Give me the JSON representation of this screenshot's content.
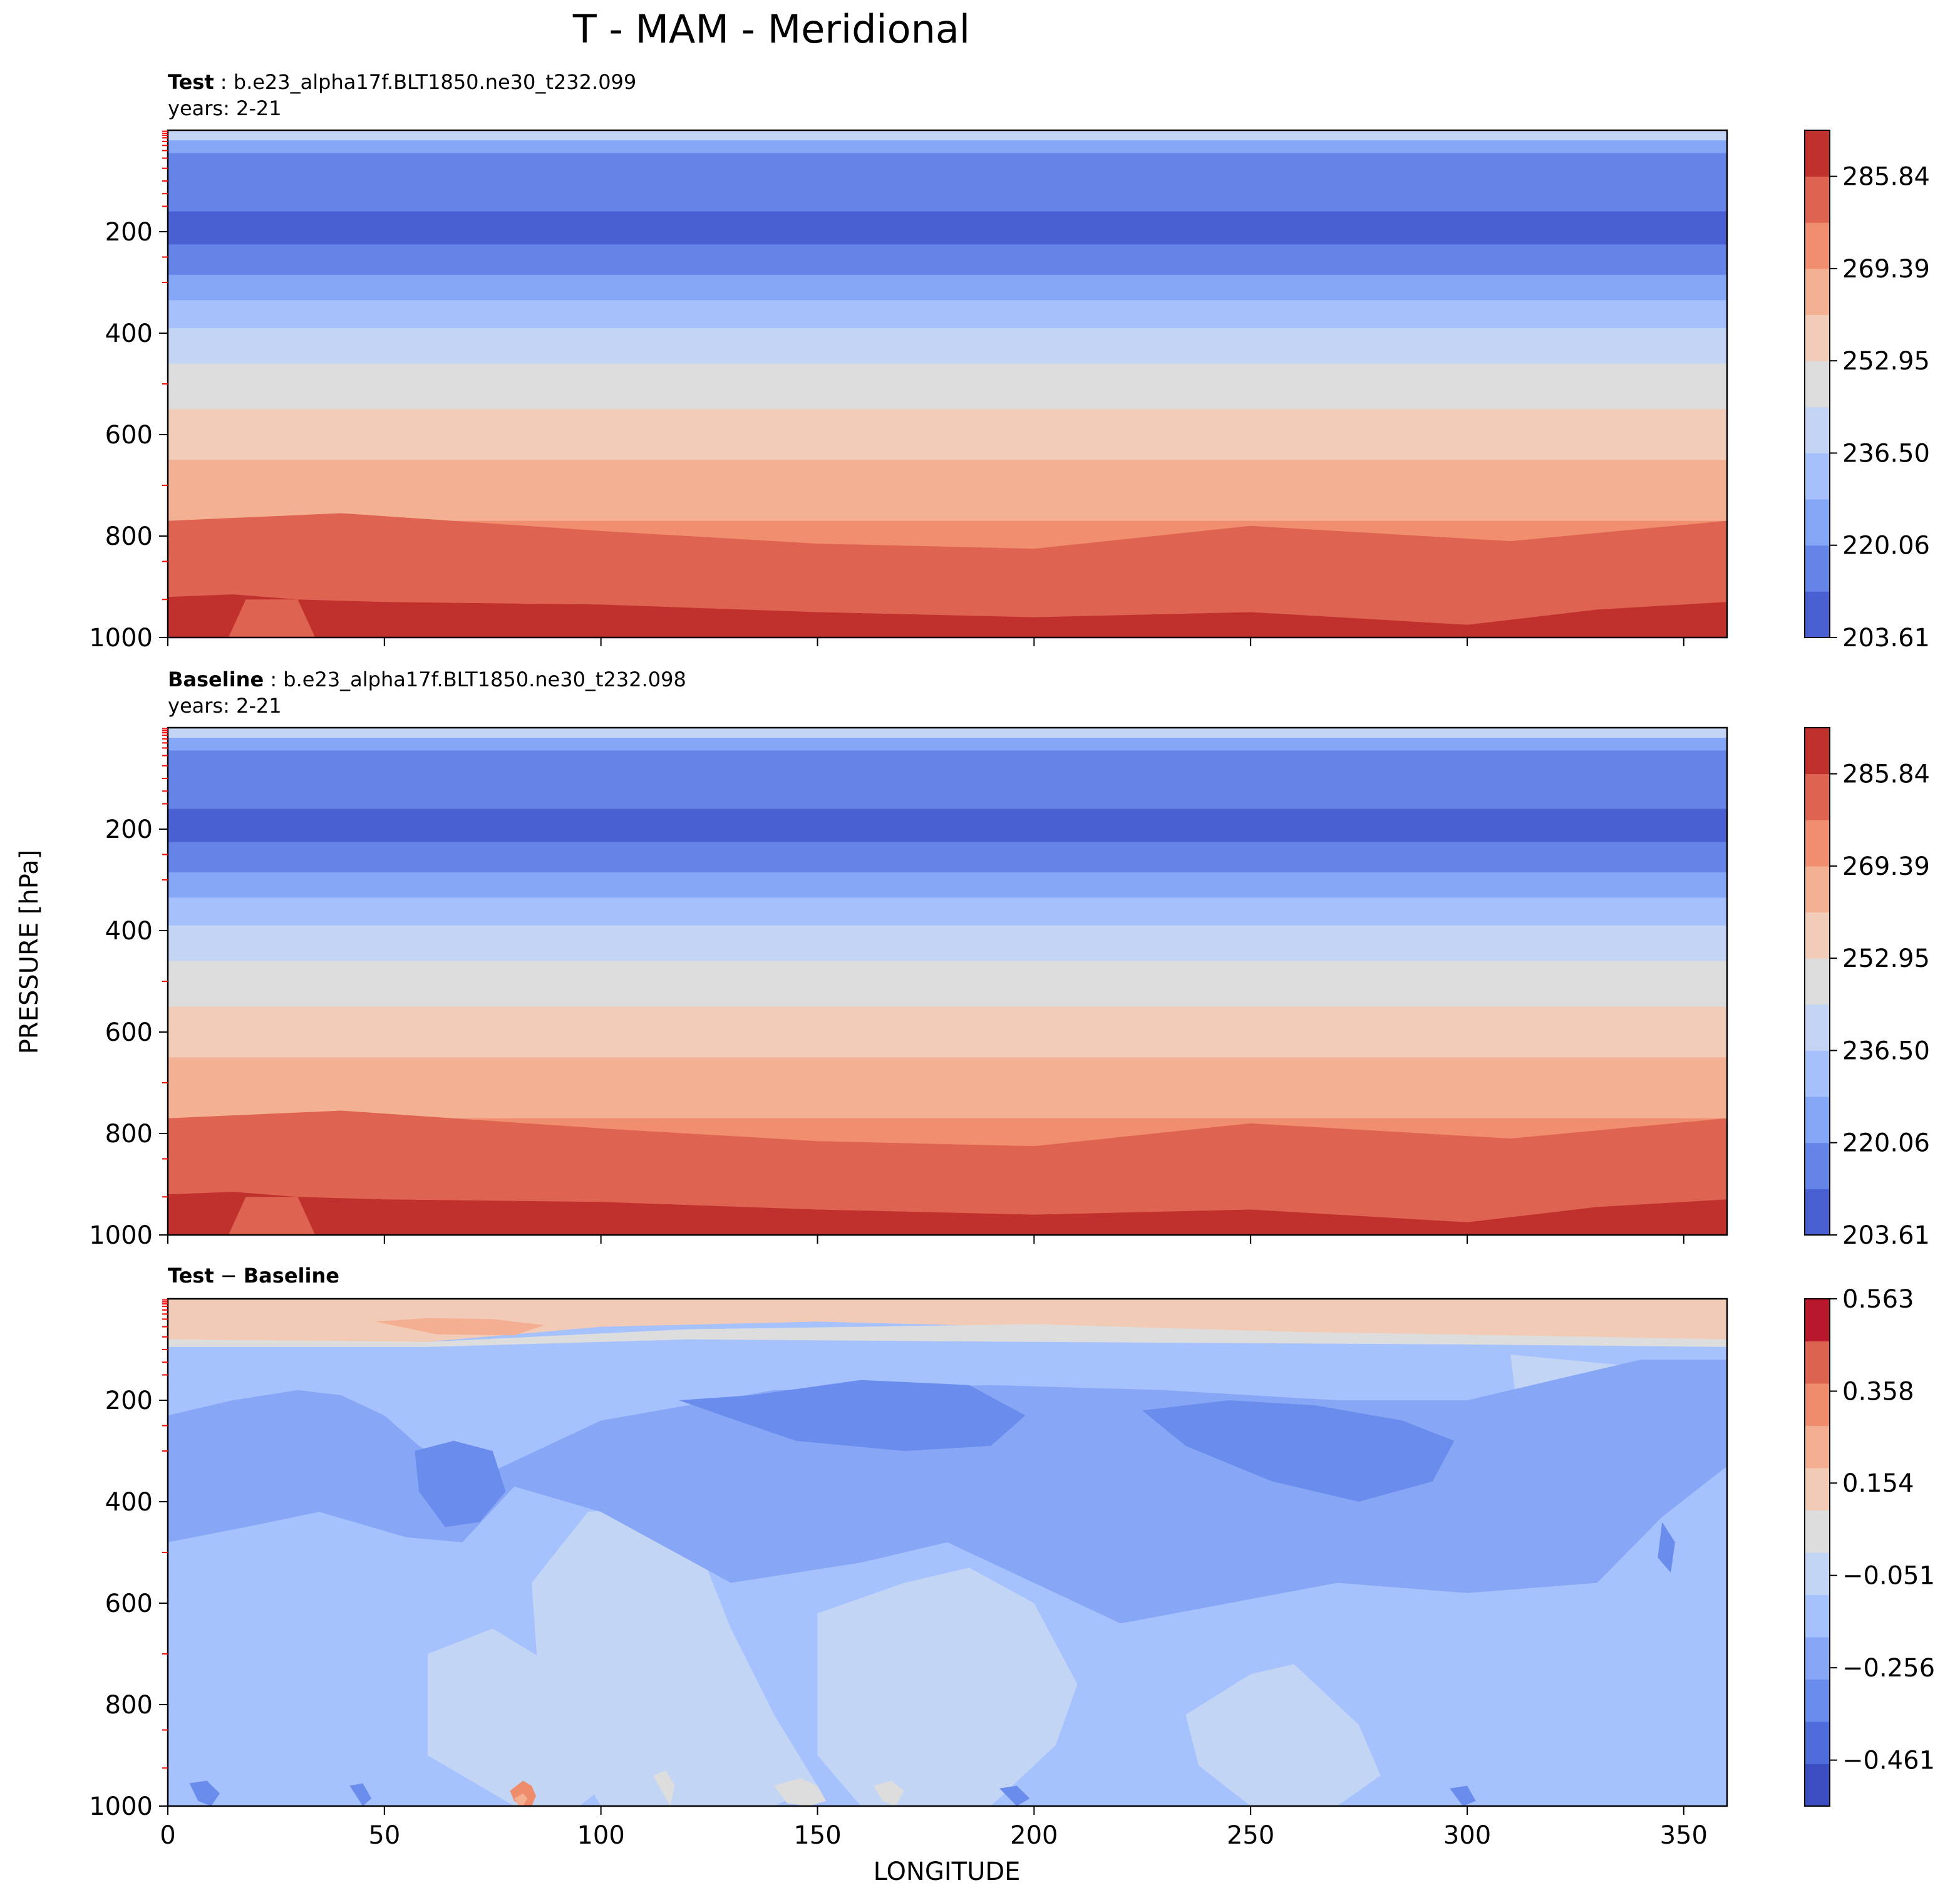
{
  "title": "T - MAM - Meridional",
  "xlabel": "LONGITUDE",
  "ylabel": "PRESSURE [hPa]",
  "colors": {
    "temp_levels": [
      "#4a5fd1",
      "#6584e8",
      "#84a6f7",
      "#a5c0fd",
      "#c3d4f4",
      "#dcdcdc",
      "#f1ccb8",
      "#f4b092",
      "#f08e6f",
      "#de6350",
      "#c0302c"
    ],
    "diff_levels": [
      "#3c4dc2",
      "#4e6ddb",
      "#6a8cec",
      "#87a7f6",
      "#a5c1fe",
      "#c3d5f4",
      "#dddddd",
      "#f2cbb6",
      "#f4af93",
      "#ef8c6c",
      "#dd6351",
      "#b8172c"
    ],
    "frame": "#000000",
    "minor_tick": "#ff0000"
  },
  "chart_data": [
    {
      "type": "contourf",
      "panel": "test",
      "label_bold": "Test",
      "label_text": " : b.e23_alpha17f.BLT1850.ne30_t232.099",
      "years": "years: 2-21",
      "x": {
        "label": "LONGITUDE",
        "range": [
          0,
          360
        ],
        "ticks": [
          0,
          50,
          100,
          150,
          200,
          250,
          300,
          350
        ],
        "tick_labels_shown": false
      },
      "y": {
        "label": "PRESSURE [hPa]",
        "range": [
          0,
          1000
        ],
        "inverted": true,
        "ticks": [
          200,
          400,
          600,
          800,
          1000
        ],
        "tick_labels": [
          "200",
          "400",
          "600",
          "800",
          "1000"
        ]
      },
      "colorbar": {
        "range": [
          203.61,
          294.06
        ],
        "levels": 11,
        "tick_values": [
          203.61,
          220.06,
          236.5,
          252.95,
          269.39,
          285.84
        ],
        "tick_labels": [
          "203.61",
          "220.06",
          "236.50",
          "252.95",
          "269.39",
          "285.84"
        ]
      },
      "band_top_levels_hpa": [
        0,
        20,
        45,
        160,
        225,
        285,
        335,
        390,
        460,
        550,
        650,
        770,
        925
      ],
      "bottom_boundary": {
        "lon": [
          0,
          15,
          30,
          50,
          100,
          150,
          200,
          250,
          280,
          300,
          330,
          360
        ],
        "p": [
          920,
          915,
          925,
          930,
          935,
          950,
          960,
          950,
          965,
          975,
          945,
          930
        ]
      },
      "warm_boundary": {
        "lon": [
          0,
          40,
          100,
          150,
          200,
          250,
          290,
          310,
          360
        ],
        "p": [
          770,
          755,
          790,
          815,
          825,
          780,
          800,
          810,
          770
        ]
      }
    },
    {
      "type": "contourf",
      "panel": "baseline",
      "label_bold": "Baseline",
      "label_text": " : b.e23_alpha17f.BLT1850.ne30_t232.098",
      "years": "years: 2-21",
      "x": {
        "label": "LONGITUDE",
        "range": [
          0,
          360
        ],
        "ticks": [
          0,
          50,
          100,
          150,
          200,
          250,
          300,
          350
        ],
        "tick_labels_shown": false
      },
      "y": {
        "label": "PRESSURE [hPa]",
        "range": [
          0,
          1000
        ],
        "inverted": true,
        "ticks": [
          200,
          400,
          600,
          800,
          1000
        ],
        "tick_labels": [
          "200",
          "400",
          "600",
          "800",
          "1000"
        ]
      },
      "colorbar": {
        "range": [
          203.61,
          294.06
        ],
        "levels": 11,
        "tick_values": [
          203.61,
          220.06,
          236.5,
          252.95,
          269.39,
          285.84
        ],
        "tick_labels": [
          "203.61",
          "220.06",
          "236.50",
          "252.95",
          "269.39",
          "285.84"
        ]
      },
      "band_top_levels_hpa": [
        0,
        20,
        45,
        160,
        225,
        285,
        335,
        390,
        460,
        550,
        650,
        770,
        925
      ],
      "bottom_boundary": {
        "lon": [
          0,
          15,
          30,
          50,
          100,
          150,
          200,
          250,
          280,
          300,
          330,
          360
        ],
        "p": [
          920,
          915,
          925,
          930,
          935,
          950,
          960,
          950,
          965,
          975,
          945,
          930
        ]
      },
      "warm_boundary": {
        "lon": [
          0,
          40,
          100,
          150,
          200,
          250,
          290,
          310,
          360
        ],
        "p": [
          770,
          755,
          790,
          815,
          825,
          780,
          800,
          810,
          770
        ]
      }
    },
    {
      "type": "contourf",
      "panel": "diff",
      "label_bold_a": "Test",
      "label_sep": " − ",
      "label_bold_b": "Baseline",
      "x": {
        "label": "LONGITUDE",
        "range": [
          0,
          360
        ],
        "ticks": [
          0,
          50,
          100,
          150,
          200,
          250,
          300,
          350
        ],
        "tick_labels": [
          "0",
          "50",
          "100",
          "150",
          "200",
          "250",
          "300",
          "350"
        ]
      },
      "y": {
        "label": "PRESSURE [hPa]",
        "range": [
          0,
          1000
        ],
        "inverted": true,
        "ticks": [
          200,
          400,
          600,
          800,
          1000
        ],
        "tick_labels": [
          "200",
          "400",
          "600",
          "800",
          "1000"
        ]
      },
      "colorbar": {
        "range": [
          -0.563,
          0.563
        ],
        "levels": 12,
        "tick_values": [
          -0.461,
          -0.256,
          -0.051,
          0.154,
          0.358,
          0.563
        ],
        "tick_labels": [
          "−0.461",
          "−0.256",
          "−0.051",
          "0.154",
          "0.358",
          "0.563"
        ]
      },
      "background_level": 4,
      "features": [
        {
          "level": 7,
          "lon": [
            0,
            30,
            60,
            90,
            120,
            200,
            260,
            330,
            360,
            360,
            300,
            220,
            150,
            100,
            60,
            20,
            0
          ],
          "p": [
            0,
            0,
            0,
            0,
            0,
            0,
            0,
            0,
            0,
            80,
            75,
            60,
            45,
            55,
            85,
            85,
            80
          ]
        },
        {
          "level": 8,
          "lon": [
            48,
            60,
            75,
            87,
            80,
            62
          ],
          "p": [
            45,
            38,
            40,
            52,
            72,
            70
          ]
        },
        {
          "level": 6,
          "lon": [
            0,
            60,
            120,
            200,
            260,
            330,
            360,
            360,
            300,
            200,
            120,
            60,
            0
          ],
          "p": [
            80,
            85,
            60,
            50,
            65,
            75,
            80,
            95,
            90,
            85,
            80,
            95,
            95
          ]
        },
        {
          "level": 5,
          "lon": [
            310,
            335,
            340,
            325,
            312
          ],
          "p": [
            110,
            130,
            250,
            300,
            250
          ]
        },
        {
          "level": 5,
          "lon": [
            60,
            75,
            100,
            110,
            95,
            80,
            60
          ],
          "p": [
            700,
            650,
            780,
            900,
            1000,
            1000,
            900
          ]
        },
        {
          "level": 5,
          "lon": [
            84,
            97,
            110,
            123,
            130,
            140,
            150,
            140,
            100,
            86
          ],
          "p": [
            560,
            420,
            410,
            500,
            650,
            820,
            960,
            1000,
            1000,
            800
          ]
        },
        {
          "level": 5,
          "lon": [
            150,
            170,
            185,
            200,
            210,
            205,
            190,
            160,
            150
          ],
          "p": [
            620,
            560,
            530,
            600,
            760,
            880,
            1000,
            1000,
            900
          ]
        },
        {
          "level": 5,
          "lon": [
            235,
            250,
            260,
            275,
            280,
            270,
            250,
            238
          ],
          "p": [
            820,
            740,
            720,
            840,
            940,
            1000,
            1000,
            920
          ]
        },
        {
          "level": 3,
          "lon": [
            0,
            15,
            30,
            40,
            50,
            58,
            66,
            70,
            100,
            140,
            190,
            230,
            270,
            300,
            325,
            340,
            360,
            360,
            345,
            330,
            300,
            270,
            245,
            220,
            200,
            180,
            160,
            130,
            100,
            80,
            68,
            55,
            35,
            18,
            0
          ],
          "p": [
            230,
            200,
            180,
            190,
            230,
            290,
            330,
            360,
            240,
            180,
            170,
            180,
            200,
            200,
            150,
            120,
            120,
            330,
            430,
            560,
            580,
            560,
            600,
            640,
            560,
            480,
            520,
            560,
            420,
            370,
            480,
            470,
            420,
            450,
            480
          ]
        },
        {
          "level": 2,
          "lon": [
            57,
            66,
            75,
            78,
            72,
            64,
            58
          ],
          "p": [
            300,
            280,
            300,
            380,
            440,
            450,
            380
          ]
        },
        {
          "level": 2,
          "lon": [
            118,
            135,
            160,
            185,
            198,
            190,
            170,
            145,
            128
          ],
          "p": [
            200,
            190,
            160,
            170,
            230,
            290,
            300,
            280,
            230
          ]
        },
        {
          "level": 2,
          "lon": [
            225,
            245,
            265,
            285,
            297,
            292,
            275,
            255,
            235
          ],
          "p": [
            220,
            200,
            210,
            240,
            280,
            360,
            400,
            360,
            290
          ]
        },
        {
          "level": 2,
          "lon": [
            345,
            348,
            347,
            344
          ],
          "p": [
            440,
            480,
            540,
            510
          ]
        },
        {
          "level": 9,
          "lon": [
            79,
            82,
            84,
            85,
            84,
            82,
            80
          ],
          "p": [
            970,
            950,
            960,
            980,
            1000,
            1000,
            990
          ]
        },
        {
          "level": 8,
          "lon": [
            80,
            82,
            83,
            82,
            81
          ],
          "p": [
            985,
            975,
            985,
            1000,
            1000
          ]
        },
        {
          "level": 6,
          "lon": [
            140,
            146,
            150,
            152,
            148,
            143
          ],
          "p": [
            960,
            945,
            960,
            990,
            1000,
            995
          ]
        },
        {
          "level": 6,
          "lon": [
            163,
            167,
            170,
            168,
            165
          ],
          "p": [
            960,
            950,
            970,
            1000,
            990
          ]
        },
        {
          "level": 6,
          "lon": [
            112,
            115,
            117,
            116
          ],
          "p": [
            940,
            930,
            960,
            1000
          ]
        },
        {
          "level": 2,
          "lon": [
            5,
            9,
            12,
            10,
            7
          ],
          "p": [
            955,
            950,
            975,
            1000,
            990
          ]
        },
        {
          "level": 2,
          "lon": [
            42,
            45,
            47,
            45
          ],
          "p": [
            960,
            955,
            985,
            1000
          ]
        },
        {
          "level": 2,
          "lon": [
            192,
            196,
            199,
            196
          ],
          "p": [
            965,
            960,
            985,
            1000
          ]
        },
        {
          "level": 2,
          "lon": [
            296,
            300,
            302,
            299
          ],
          "p": [
            965,
            960,
            990,
            1000
          ]
        }
      ]
    }
  ]
}
